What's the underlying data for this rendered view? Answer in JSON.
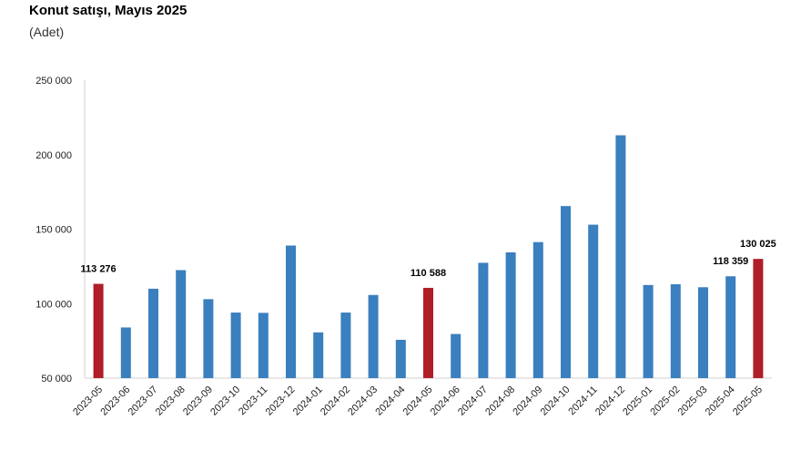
{
  "title": "Konut satışı, Mayıs 2025",
  "subtitle": "(Adet)",
  "chart_data": {
    "type": "bar",
    "title": "Konut satışı, Mayıs 2025",
    "subtitle": "(Adet)",
    "xlabel": "",
    "ylabel": "",
    "ylim": [
      50000,
      250000
    ],
    "yticks": [
      50000,
      100000,
      150000,
      200000,
      250000
    ],
    "ytick_labels": [
      "50 000",
      "100 000",
      "150 000",
      "200 000",
      "250 000"
    ],
    "grid": false,
    "categories": [
      "2023-05",
      "2023-06",
      "2023-07",
      "2023-08",
      "2023-09",
      "2023-10",
      "2023-11",
      "2023-12",
      "2024-01",
      "2024-02",
      "2024-03",
      "2024-04",
      "2024-05",
      "2024-06",
      "2024-07",
      "2024-08",
      "2024-09",
      "2024-10",
      "2024-11",
      "2024-12",
      "2025-01",
      "2025-02",
      "2025-03",
      "2025-04",
      "2025-05"
    ],
    "values": [
      113276,
      84000,
      110000,
      122500,
      103000,
      94000,
      93800,
      139000,
      80700,
      94000,
      105800,
      75700,
      110588,
      79600,
      127400,
      134400,
      141300,
      165500,
      153000,
      213000,
      112500,
      113000,
      111000,
      118359,
      130025
    ],
    "highlight": [
      0,
      12,
      24
    ],
    "colors": {
      "default": "#3a7fbe",
      "highlight": "#b01e28"
    },
    "data_labels": [
      {
        "index": 0,
        "text": "113 276"
      },
      {
        "index": 12,
        "text": "110 588"
      },
      {
        "index": 23,
        "text": "118 359"
      },
      {
        "index": 24,
        "text": "130 025"
      }
    ]
  }
}
